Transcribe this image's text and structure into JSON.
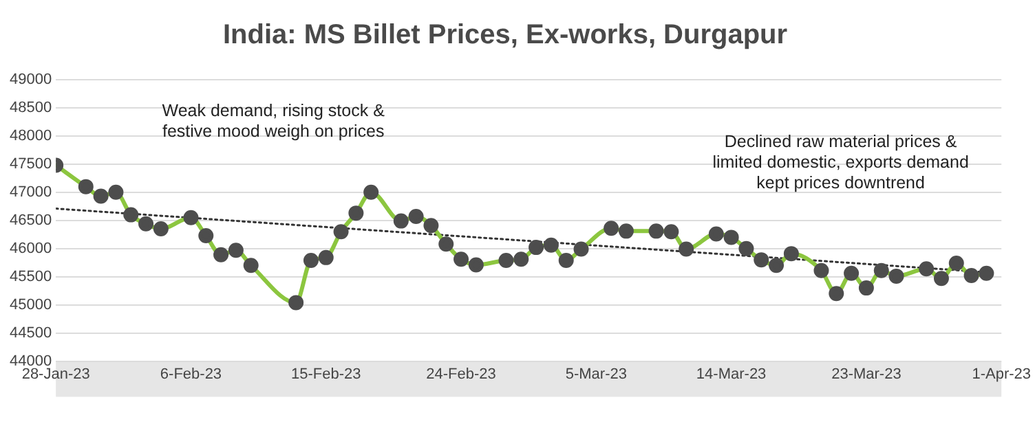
{
  "chart_data": {
    "type": "line",
    "title": "India: MS Billet Prices, Ex-works, Durgapur",
    "xlim": [
      "--01-28",
      "--04-01"
    ],
    "xticks": [
      {
        "value": "--01-28",
        "label": "28-Jan-23"
      },
      {
        "value": "--02-06",
        "label": "6-Feb-23"
      },
      {
        "value": "--02-15",
        "label": "15-Feb-23"
      },
      {
        "value": "--02-24",
        "label": "24-Feb-23"
      },
      {
        "value": "--03-05",
        "label": "5-Mar-23"
      },
      {
        "value": "--03-14",
        "label": "14-Mar-23"
      },
      {
        "value": "--03-23",
        "label": "23-Mar-23"
      },
      {
        "value": "--04-01",
        "label": "1-Apr-23"
      }
    ],
    "ylim": [
      44000,
      49000
    ],
    "yticks": [
      44000,
      44500,
      45000,
      45500,
      46000,
      46500,
      47000,
      47500,
      48000,
      48500,
      49000
    ],
    "grid": "y",
    "legend": false,
    "annotations": [
      "Weak demand, rising stock & festive mood weigh on prices",
      "Declined raw material prices & limited domestic, exports demand kept prices downtrend"
    ],
    "series": [
      {
        "color": "#8cc63f",
        "marker": "circle",
        "line_style": "solid",
        "x": [
          "--01-28",
          "--01-30",
          "--01-31",
          "--02-01",
          "--02-02",
          "--02-03",
          "--02-04",
          "--02-06",
          "--02-07",
          "--02-08",
          "--02-09",
          "--02-10",
          "--02-13",
          "--02-14",
          "--02-15",
          "--02-16",
          "--02-17",
          "--02-18",
          "--02-20",
          "--02-21",
          "--02-22",
          "--02-23",
          "--02-24",
          "--02-25",
          "--02-27",
          "--02-28",
          "--03-01",
          "--03-02",
          "--03-03",
          "--03-04",
          "--03-06",
          "--03-07",
          "--03-09",
          "--03-10",
          "--03-11",
          "--03-13",
          "--03-14",
          "--03-15",
          "--03-16",
          "--03-17",
          "--03-18",
          "--03-20",
          "--03-21",
          "--03-22",
          "--03-23",
          "--03-24",
          "--03-25",
          "--03-27",
          "--03-28",
          "--03-29",
          "--03-30",
          "--03-31"
        ],
        "values": [
          47480,
          47100,
          46930,
          47000,
          46600,
          46440,
          46350,
          46550,
          46230,
          45890,
          45970,
          45700,
          45040,
          45790,
          45840,
          46300,
          46630,
          47000,
          46490,
          46570,
          46410,
          46080,
          45810,
          45710,
          45790,
          45810,
          46020,
          46060,
          45790,
          45990,
          46360,
          46310,
          46310,
          46300,
          45990,
          46260,
          46200,
          46000,
          45800,
          45700,
          45910,
          45610,
          45200,
          45560,
          45300,
          45610,
          45510,
          45640,
          45470,
          45740,
          45520,
          45560
        ]
      },
      {
        "color": "#333333",
        "marker": "none",
        "line_style": "dotted",
        "x": [
          "--01-28",
          "--03-31"
        ],
        "values": [
          46710,
          45580
        ]
      }
    ]
  }
}
